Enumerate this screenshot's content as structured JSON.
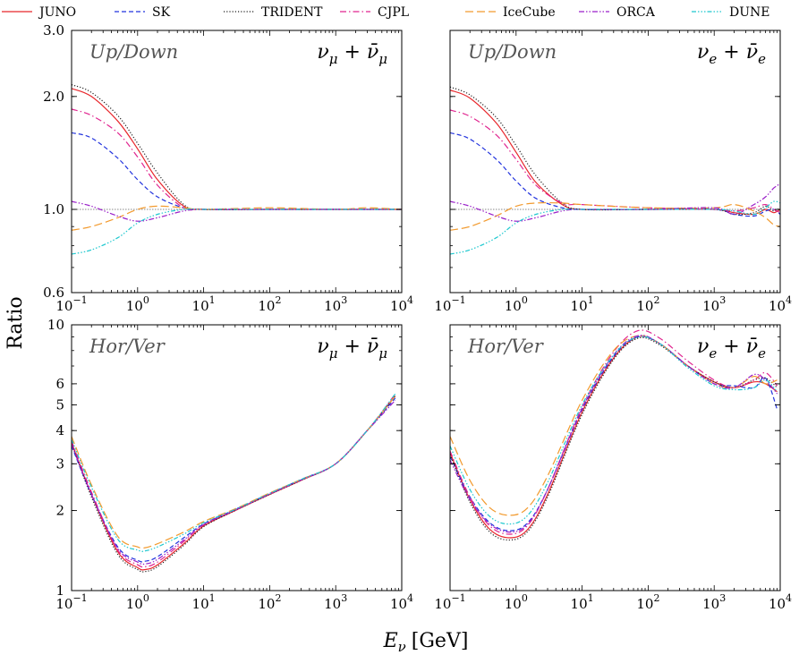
{
  "figure": {
    "ylabel": "Ratio",
    "xlabel_main": "E",
    "xlabel_sub": "ν",
    "xlabel_unit": "[GeV]"
  },
  "legend": [
    {
      "name": "JUNO",
      "color": "#e8262b",
      "dash": "solid"
    },
    {
      "name": "SK",
      "color": "#2233dd",
      "dash": "dashed"
    },
    {
      "name": "TRIDENT",
      "color": "#222222",
      "dash": "dotted"
    },
    {
      "name": "CJPL",
      "color": "#e0248f",
      "dash": "dashdot"
    },
    {
      "name": "IceCube",
      "color": "#f29a2e",
      "dash": "longdash"
    },
    {
      "name": "ORCA",
      "color": "#9a1fc9",
      "dash": "dashdotdot"
    },
    {
      "name": "DUNE",
      "color": "#1ec8cf",
      "dash": "dashdotdotdot"
    }
  ],
  "chart_data": [
    {
      "type": "line",
      "panel": "top-left",
      "tag": "Up/Down",
      "flavor": {
        "base": "ν",
        "sub": "μ",
        "plus": " + ",
        "bar": "ν̄",
        "barsub": "μ"
      },
      "xscale": "log",
      "yscale": "log",
      "xlim": [
        0.1,
        10000
      ],
      "ylim": [
        0.6,
        3.0
      ],
      "x_ticks": [
        0.1,
        1,
        10,
        100,
        1000,
        10000
      ],
      "x_tick_labels": [
        [
          "10",
          "−1"
        ],
        [
          "10",
          "0"
        ],
        [
          "10",
          "1"
        ],
        [
          "10",
          "2"
        ],
        [
          "10",
          "3"
        ],
        [
          "10",
          "4"
        ]
      ],
      "y_ticks": [
        0.6,
        1.0,
        2.0,
        3.0
      ],
      "y_tick_labels": [
        "0.6",
        "1.0",
        "2.0",
        "3.0"
      ],
      "reference_line": 1.0,
      "x": [
        0.1,
        0.2,
        0.5,
        1,
        2,
        5,
        10,
        100,
        1000,
        3000,
        10000
      ],
      "series": [
        {
          "name": "JUNO",
          "values": [
            2.1,
            2.0,
            1.72,
            1.45,
            1.2,
            1.02,
            1.0,
            1.0,
            1.0,
            1.0,
            1.0
          ]
        },
        {
          "name": "SK",
          "values": [
            1.6,
            1.55,
            1.37,
            1.2,
            1.08,
            1.01,
            1.0,
            1.0,
            1.0,
            1.0,
            1.0
          ]
        },
        {
          "name": "TRIDENT",
          "values": [
            2.15,
            2.05,
            1.78,
            1.5,
            1.25,
            1.03,
            1.0,
            1.0,
            1.0,
            1.0,
            1.0
          ]
        },
        {
          "name": "CJPL",
          "values": [
            1.85,
            1.78,
            1.6,
            1.38,
            1.16,
            1.01,
            1.0,
            1.0,
            1.0,
            1.0,
            1.0
          ]
        },
        {
          "name": "IceCube",
          "values": [
            0.88,
            0.9,
            0.95,
            1.0,
            1.02,
            1.01,
            1.0,
            1.01,
            1.0,
            1.01,
            1.0
          ]
        },
        {
          "name": "ORCA",
          "values": [
            1.05,
            1.02,
            0.96,
            0.93,
            0.95,
            0.99,
            1.0,
            1.0,
            1.0,
            1.0,
            1.0
          ]
        },
        {
          "name": "DUNE",
          "values": [
            0.76,
            0.78,
            0.84,
            0.92,
            0.97,
            1.0,
            1.0,
            1.0,
            1.0,
            1.0,
            1.0
          ]
        }
      ]
    },
    {
      "type": "line",
      "panel": "top-right",
      "tag": "Up/Down",
      "flavor": {
        "base": "ν",
        "sub": "e",
        "plus": " + ",
        "bar": "ν̄",
        "barsub": "e"
      },
      "xscale": "log",
      "yscale": "log",
      "xlim": [
        0.1,
        10000
      ],
      "ylim": [
        0.6,
        3.0
      ],
      "x_ticks": [
        0.1,
        1,
        10,
        100,
        1000,
        10000
      ],
      "x_tick_labels": [
        [
          "10",
          "−1"
        ],
        [
          "10",
          "0"
        ],
        [
          "10",
          "1"
        ],
        [
          "10",
          "2"
        ],
        [
          "10",
          "3"
        ],
        [
          "10",
          "4"
        ]
      ],
      "y_ticks": [
        0.6,
        1.0,
        2.0,
        3.0
      ],
      "y_tick_labels": [
        "",
        "",
        "",
        ""
      ],
      "reference_line": 1.0,
      "x": [
        0.1,
        0.2,
        0.5,
        1,
        2,
        5,
        10,
        100,
        1000,
        2000,
        4000,
        6000,
        8000,
        10000
      ],
      "series": [
        {
          "name": "JUNO",
          "values": [
            2.08,
            1.98,
            1.7,
            1.42,
            1.18,
            1.03,
            1.0,
            1.0,
            1.0,
            0.98,
            0.97,
            1.0,
            0.98,
            1.0
          ]
        },
        {
          "name": "SK",
          "values": [
            1.6,
            1.54,
            1.36,
            1.19,
            1.07,
            1.01,
            1.0,
            1.0,
            1.0,
            0.97,
            0.96,
            0.99,
            1.0,
            0.97
          ]
        },
        {
          "name": "TRIDENT",
          "values": [
            2.12,
            2.02,
            1.76,
            1.48,
            1.23,
            1.04,
            1.0,
            1.0,
            1.0,
            0.97,
            0.98,
            1.02,
            0.99,
            1.01
          ]
        },
        {
          "name": "CJPL",
          "values": [
            1.84,
            1.77,
            1.58,
            1.36,
            1.16,
            1.04,
            1.03,
            1.01,
            1.0,
            0.99,
            1.01,
            1.03,
            1.0,
            0.98
          ]
        },
        {
          "name": "IceCube",
          "values": [
            0.88,
            0.9,
            0.96,
            1.02,
            1.04,
            1.04,
            1.03,
            1.01,
            1.01,
            1.03,
            0.99,
            0.95,
            0.91,
            0.9
          ]
        },
        {
          "name": "ORCA",
          "values": [
            1.05,
            1.02,
            0.96,
            0.93,
            0.95,
            0.99,
            1.0,
            1.0,
            1.01,
            0.97,
            1.03,
            1.08,
            1.14,
            1.17
          ]
        },
        {
          "name": "DUNE",
          "values": [
            0.76,
            0.78,
            0.84,
            0.92,
            0.97,
            1.0,
            1.0,
            1.0,
            1.0,
            0.99,
            0.97,
            1.01,
            1.05,
            1.04
          ]
        }
      ]
    },
    {
      "type": "line",
      "panel": "bottom-left",
      "tag": "Hor/Ver",
      "flavor": {
        "base": "ν",
        "sub": "μ",
        "plus": " + ",
        "bar": "ν̄",
        "barsub": "μ"
      },
      "xscale": "log",
      "yscale": "log",
      "xlim": [
        0.1,
        10000
      ],
      "ylim": [
        1,
        10
      ],
      "x_ticks": [
        0.1,
        1,
        10,
        100,
        1000,
        10000
      ],
      "x_tick_labels": [
        [
          "10",
          "−1"
        ],
        [
          "10",
          "0"
        ],
        [
          "10",
          "1"
        ],
        [
          "10",
          "2"
        ],
        [
          "10",
          "3"
        ],
        [
          "10",
          "4"
        ]
      ],
      "y_ticks": [
        1,
        2,
        3,
        4,
        5,
        6,
        10
      ],
      "y_tick_labels": [
        "1",
        "2",
        "3",
        "4",
        "5",
        "6",
        "10"
      ],
      "x": [
        0.1,
        0.2,
        0.5,
        1,
        1.3,
        2,
        5,
        10,
        30,
        100,
        300,
        1000,
        3000,
        8000
      ],
      "series": [
        {
          "name": "JUNO",
          "values": [
            3.6,
            2.3,
            1.4,
            1.22,
            1.2,
            1.25,
            1.5,
            1.75,
            2.0,
            2.3,
            2.6,
            3.0,
            4.0,
            5.4
          ]
        },
        {
          "name": "SK",
          "values": [
            3.5,
            2.3,
            1.46,
            1.3,
            1.29,
            1.34,
            1.58,
            1.78,
            2.02,
            2.32,
            2.62,
            3.0,
            4.0,
            5.3
          ]
        },
        {
          "name": "TRIDENT",
          "values": [
            3.6,
            2.25,
            1.37,
            1.2,
            1.18,
            1.23,
            1.48,
            1.74,
            2.0,
            2.3,
            2.6,
            3.0,
            4.0,
            5.4
          ]
        },
        {
          "name": "CJPL",
          "values": [
            3.65,
            2.35,
            1.42,
            1.25,
            1.23,
            1.28,
            1.53,
            1.77,
            2.01,
            2.31,
            2.61,
            3.0,
            4.0,
            5.5
          ]
        },
        {
          "name": "IceCube",
          "values": [
            3.8,
            2.5,
            1.6,
            1.46,
            1.45,
            1.5,
            1.66,
            1.82,
            2.03,
            2.33,
            2.62,
            3.0,
            4.0,
            5.4
          ]
        },
        {
          "name": "ORCA",
          "values": [
            3.55,
            2.3,
            1.44,
            1.28,
            1.26,
            1.31,
            1.55,
            1.77,
            2.01,
            2.31,
            2.61,
            3.0,
            4.0,
            5.2
          ]
        },
        {
          "name": "DUNE",
          "values": [
            3.7,
            2.45,
            1.56,
            1.42,
            1.41,
            1.46,
            1.63,
            1.8,
            2.02,
            2.32,
            2.62,
            3.0,
            4.0,
            5.5
          ]
        }
      ]
    },
    {
      "type": "line",
      "panel": "bottom-right",
      "tag": "Hor/Ver",
      "flavor": {
        "base": "ν",
        "sub": "e",
        "plus": " + ",
        "bar": "ν̄",
        "barsub": "e"
      },
      "xscale": "log",
      "yscale": "log",
      "xlim": [
        0.1,
        10000
      ],
      "ylim": [
        1,
        10
      ],
      "x_ticks": [
        0.1,
        1,
        10,
        100,
        1000,
        10000
      ],
      "x_tick_labels": [
        [
          "10",
          "−1"
        ],
        [
          "10",
          "0"
        ],
        [
          "10",
          "1"
        ],
        [
          "10",
          "2"
        ],
        [
          "10",
          "3"
        ],
        [
          "10",
          "4"
        ]
      ],
      "y_ticks": [
        1,
        2,
        3,
        4,
        5,
        6,
        10
      ],
      "y_tick_labels": [
        "",
        "",
        "",
        "",
        "",
        "",
        ""
      ],
      "x": [
        0.1,
        0.2,
        0.4,
        0.8,
        1.5,
        3,
        10,
        30,
        70,
        150,
        400,
        1000,
        2000,
        4000,
        6000,
        9000
      ],
      "series": [
        {
          "name": "JUNO",
          "values": [
            3.3,
            2.2,
            1.7,
            1.58,
            1.7,
            2.3,
            4.7,
            7.5,
            9.0,
            8.5,
            7.0,
            6.1,
            5.8,
            6.1,
            6.0,
            5.6
          ]
        },
        {
          "name": "SK",
          "values": [
            3.2,
            2.25,
            1.8,
            1.68,
            1.8,
            2.4,
            4.8,
            7.6,
            9.0,
            8.5,
            7.0,
            6.0,
            5.9,
            5.8,
            6.3,
            4.8
          ]
        },
        {
          "name": "TRIDENT",
          "values": [
            3.25,
            2.15,
            1.66,
            1.55,
            1.67,
            2.25,
            4.6,
            7.4,
            8.9,
            8.4,
            7.0,
            6.1,
            5.8,
            6.2,
            6.3,
            5.8
          ]
        },
        {
          "name": "CJPL",
          "values": [
            3.35,
            2.25,
            1.75,
            1.63,
            1.76,
            2.4,
            4.9,
            7.9,
            9.5,
            8.9,
            7.3,
            6.2,
            5.8,
            6.2,
            6.6,
            5.9
          ]
        },
        {
          "name": "IceCube",
          "values": [
            3.8,
            2.6,
            2.05,
            1.92,
            2.05,
            2.7,
            5.2,
            8.0,
            9.1,
            8.5,
            7.0,
            6.0,
            5.8,
            6.4,
            6.0,
            6.2
          ]
        },
        {
          "name": "ORCA",
          "values": [
            3.1,
            2.2,
            1.78,
            1.66,
            1.78,
            2.4,
            4.85,
            7.7,
            9.1,
            8.5,
            7.0,
            6.0,
            5.8,
            6.5,
            6.2,
            5.5
          ]
        },
        {
          "name": "DUNE",
          "values": [
            3.5,
            2.4,
            1.9,
            1.78,
            1.92,
            2.55,
            5.0,
            7.7,
            9.0,
            8.5,
            6.9,
            5.9,
            5.7,
            5.8,
            6.2,
            5.6
          ]
        }
      ]
    }
  ]
}
